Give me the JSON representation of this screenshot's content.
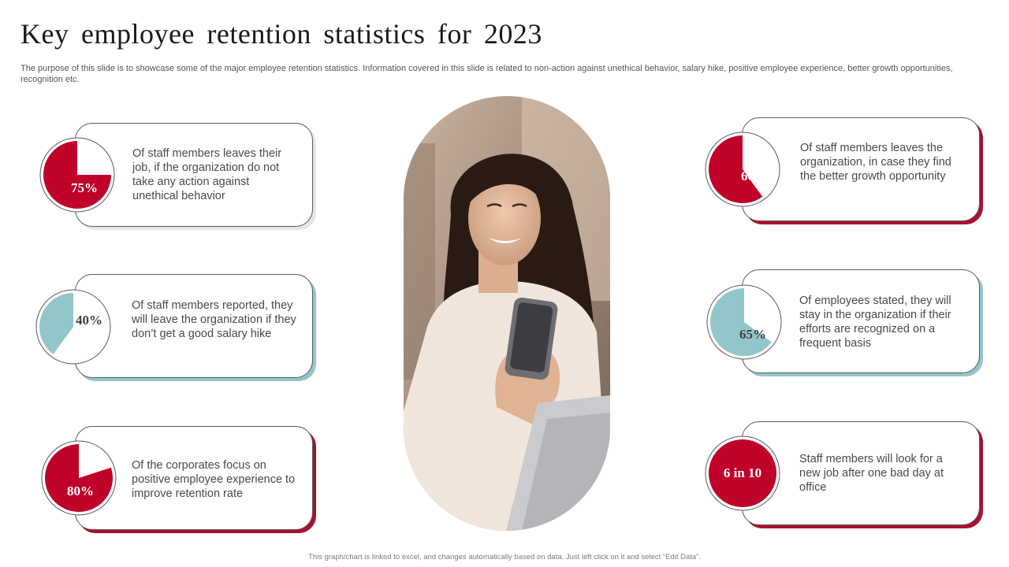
{
  "title": "Key employee retention statistics for 2023",
  "subtitle": "The purpose of this slide is to showcase some of the major employee retention statistics. Information covered in this slide is related to non-action against unethical behavior, salary hike, positive employee experience, better growth opportunities, recognition etc.",
  "footer": "This graph/chart is linked to excel, and changes automatically based on data. Just left click on it and select “Edit Data”.",
  "colors": {
    "red": "#c0022a",
    "teal": "#93c6cb",
    "shadow_red": "#a8102e",
    "shadow_teal": "#93c6cb"
  },
  "stats": [
    {
      "label": "75%",
      "value": 75,
      "color": "red",
      "text": "Of staff members leaves their job, if the organization do not take any action against unethical behavior"
    },
    {
      "label": "40%",
      "value": 40,
      "color": "teal",
      "text": "Of staff members reported, they will leave the organization if they don’t get a good salary hike"
    },
    {
      "label": "80%",
      "value": 80,
      "color": "red",
      "text": "Of the corporates focus on positive employee experience to improve retention rate"
    },
    {
      "label": "60%",
      "value": 60,
      "color": "red",
      "text": "Of staff members leaves the organization, in case they find the better growth opportunity"
    },
    {
      "label": "65%",
      "value": 65,
      "color": "teal",
      "text": "Of employees stated, they will stay in the organization if their efforts are recognized on a frequent basis"
    },
    {
      "label": "6 in 10",
      "value": 60,
      "color": "red",
      "full": true,
      "text": "Staff members will look for a new job after one bad day at office"
    }
  ]
}
